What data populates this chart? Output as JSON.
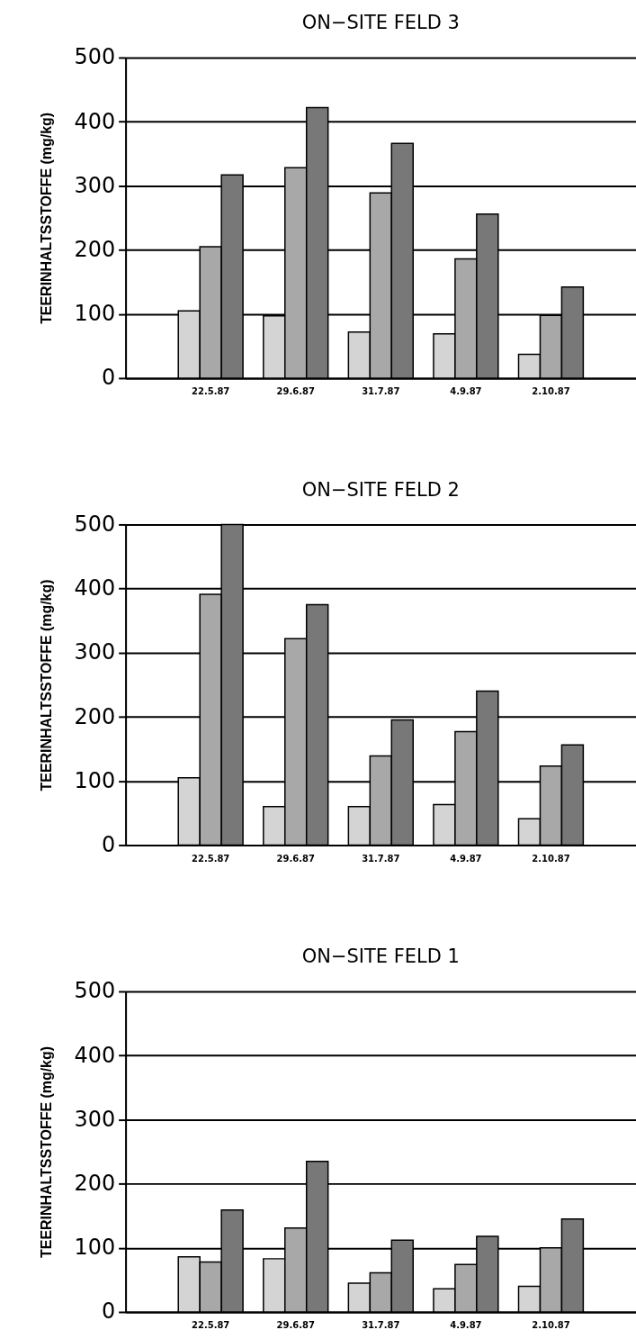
{
  "chart_data": [
    {
      "type": "bar",
      "title": "ON−SITE FELD 3",
      "ylabel": "TEERINHALTSSTOFFE (mg/kg)",
      "categories": [
        "22.5.87",
        "29.6.87",
        "31.7.87",
        "4.9.87",
        "2.10.87"
      ],
      "series": [
        {
          "color": "#d4d4d4",
          "values": [
            105,
            97,
            72,
            69,
            37
          ]
        },
        {
          "color": "#a8a8a8",
          "values": [
            205,
            328,
            289,
            186,
            98
          ]
        },
        {
          "color": "#787878",
          "values": [
            317,
            422,
            366,
            256,
            142
          ]
        }
      ],
      "ylim": [
        0,
        500
      ],
      "yticks": [
        0,
        100,
        200,
        300,
        400,
        500
      ],
      "grid": "y"
    },
    {
      "type": "bar",
      "title": "ON−SITE FELD 2",
      "ylabel": "TEERINHALTSSTOFFE (mg/kg)",
      "categories": [
        "22.5.87",
        "29.6.87",
        "31.7.87",
        "4.9.87",
        "2.10.87"
      ],
      "series": [
        {
          "color": "#d4d4d4",
          "values": [
            105,
            60,
            60,
            63,
            41
          ]
        },
        {
          "color": "#a8a8a8",
          "values": [
            391,
            322,
            139,
            177,
            123
          ]
        },
        {
          "color": "#787878",
          "values": [
            500,
            375,
            195,
            240,
            156
          ]
        }
      ],
      "ylim": [
        0,
        500
      ],
      "yticks": [
        0,
        100,
        200,
        300,
        400,
        500
      ],
      "grid": "y"
    },
    {
      "type": "bar",
      "title": "ON−SITE FELD 1",
      "ylabel": "TEERINHALTSSTOFFE (mg/kg)",
      "categories": [
        "22.5.87",
        "29.6.87",
        "31.7.87",
        "4.9.87",
        "2.10.87"
      ],
      "series": [
        {
          "color": "#d4d4d4",
          "values": [
            86,
            83,
            45,
            36,
            40
          ]
        },
        {
          "color": "#a8a8a8",
          "values": [
            78,
            131,
            61,
            74,
            100
          ]
        },
        {
          "color": "#787878",
          "values": [
            159,
            235,
            112,
            118,
            145
          ]
        }
      ],
      "ylim": [
        0,
        500
      ],
      "yticks": [
        0,
        100,
        200,
        300,
        400,
        500
      ],
      "grid": "y"
    }
  ]
}
